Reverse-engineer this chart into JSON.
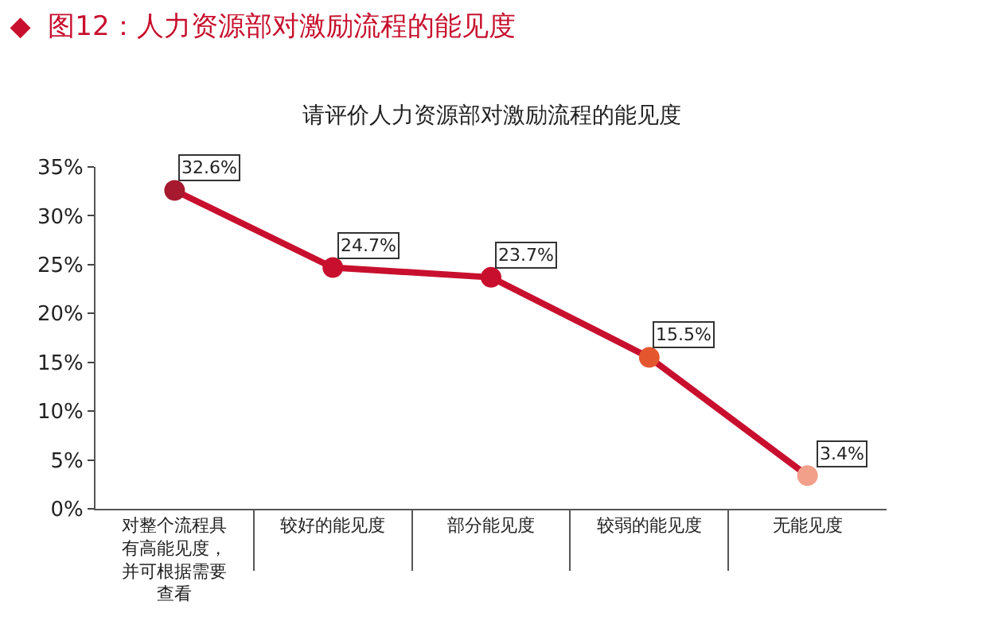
{
  "chart_data": {
    "type": "line",
    "title": "◆  图12：人力资源部对激励流程的能见度",
    "subtitle": "请评价人力资源部对激励流程的能见度",
    "categories": [
      "对整个流程具有高能见度，并可根据需要查看",
      "较好的能见度",
      "部分能见度",
      "较弱的能见度",
      "无能见度"
    ],
    "series": [
      {
        "color": "#c8102e",
        "colors": [
          "#a6192e",
          "#c8102e",
          "#c8102e",
          "#e4572e",
          "#f2a08a"
        ],
        "values": [
          32.6,
          24.7,
          23.7,
          15.5,
          3.4
        ]
      }
    ],
    "value_labels": [
      "32.6%",
      "24.7%",
      "23.7%",
      "15.5%",
      "3.4%"
    ],
    "ylim": [
      0,
      35
    ],
    "yticks": [
      {
        "value": 0,
        "label": "0%"
      },
      {
        "value": 5,
        "label": "5%"
      },
      {
        "value": 10,
        "label": "10%"
      },
      {
        "value": 15,
        "label": "15%"
      },
      {
        "value": 20,
        "label": "20%"
      },
      {
        "value": 25,
        "label": "25%"
      },
      {
        "value": 30,
        "label": "30%"
      },
      {
        "value": 35,
        "label": "35%"
      }
    ],
    "grid": false,
    "marker": "circle",
    "line_style": "solid"
  }
}
